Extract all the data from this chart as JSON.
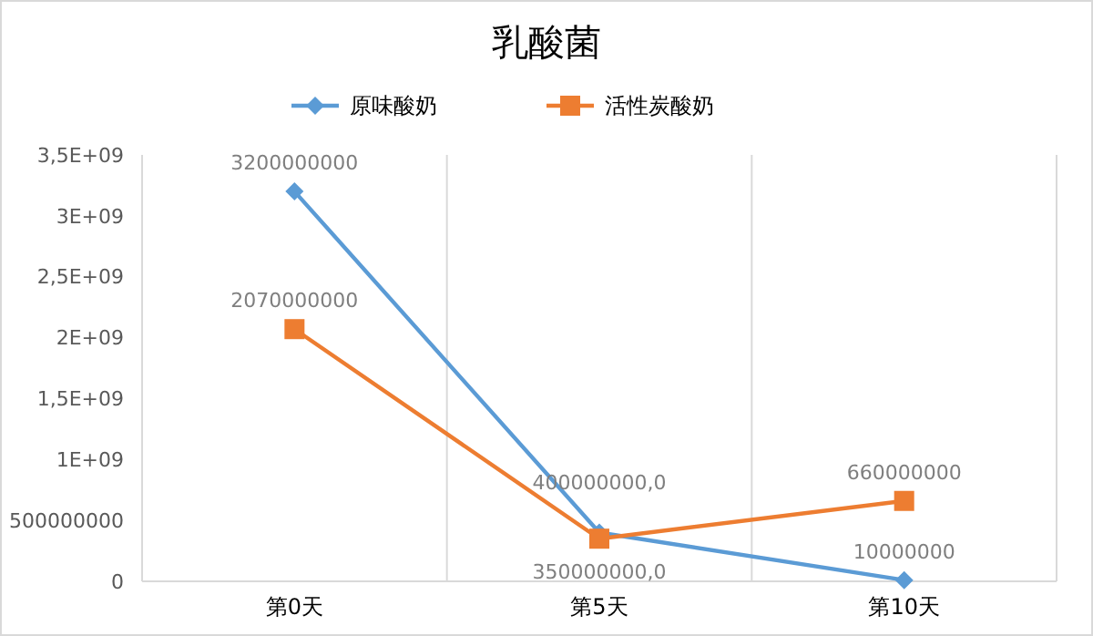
{
  "chart_data": {
    "type": "line",
    "title": "乳酸菌",
    "categories": [
      "第0天",
      "第5天",
      "第10天"
    ],
    "series": [
      {
        "name": "原味酸奶",
        "color": "#5b9bd5",
        "marker": "diamond",
        "values": [
          3200000000,
          400000000,
          10000000
        ],
        "value_labels": [
          "3200000000",
          "400000000,0",
          "10000000"
        ]
      },
      {
        "name": "活性炭酸奶",
        "color": "#ed7d31",
        "marker": "square",
        "values": [
          2070000000,
          350000000,
          660000000
        ],
        "value_labels": [
          "2070000000",
          "350000000,0",
          "660000000"
        ]
      }
    ],
    "ylim": [
      0,
      3500000000
    ],
    "yticks": [
      0,
      500000000,
      {
        "value": 1000000000,
        "label": "1E+09"
      },
      {
        "value": 1500000000,
        "label": "1,5E+09"
      },
      {
        "value": 2000000000,
        "label": "2E+09"
      },
      {
        "value": 2500000000,
        "label": "2,5E+09"
      },
      {
        "value": 3000000000,
        "label": "3E+09"
      },
      {
        "value": 3500000000,
        "label": "3,5E+09"
      }
    ],
    "grid": "x",
    "legend": "top",
    "line_style": "solid"
  }
}
